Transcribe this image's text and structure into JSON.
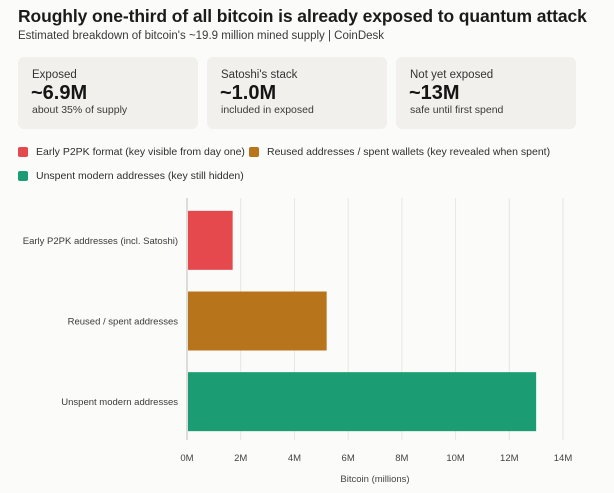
{
  "header": {
    "title": "Roughly one-third of all bitcoin is already exposed to quantum attack",
    "subtitle": "Estimated breakdown of bitcoin's ~19.9 million mined supply | CoinDesk"
  },
  "cards": [
    {
      "label": "Exposed",
      "value": "~6.9M",
      "note": "about 35% of supply"
    },
    {
      "label": "Satoshi's stack",
      "value": "~1.0M",
      "note": "included in exposed"
    },
    {
      "label": "Not yet exposed",
      "value": "~13M",
      "note": "safe until first spend"
    }
  ],
  "legend": [
    {
      "label": "Early P2PK format (key visible from day one)",
      "color": "#e5484d"
    },
    {
      "label": "Reused addresses / spent wallets (key revealed when spent)",
      "color": "#b8741a"
    },
    {
      "label": "Unspent modern addresses (key still hidden)",
      "color": "#1b9c73"
    }
  ],
  "chart_data": {
    "type": "bar",
    "orientation": "horizontal",
    "categories": [
      "Early P2PK addresses (incl. Satoshi)",
      "Reused / spent addresses",
      "Unspent modern addresses"
    ],
    "values": [
      1.7,
      5.2,
      13.0
    ],
    "colors": [
      "#e5484d",
      "#b8741a",
      "#1b9c73"
    ],
    "xlabel": "Bitcoin (millions)",
    "xlim": [
      0,
      14
    ],
    "xticks": [
      0,
      2,
      4,
      6,
      8,
      10,
      12,
      14
    ],
    "xtick_labels": [
      "0M",
      "2M",
      "4M",
      "6M",
      "8M",
      "10M",
      "12M",
      "14M"
    ],
    "grid": true
  }
}
